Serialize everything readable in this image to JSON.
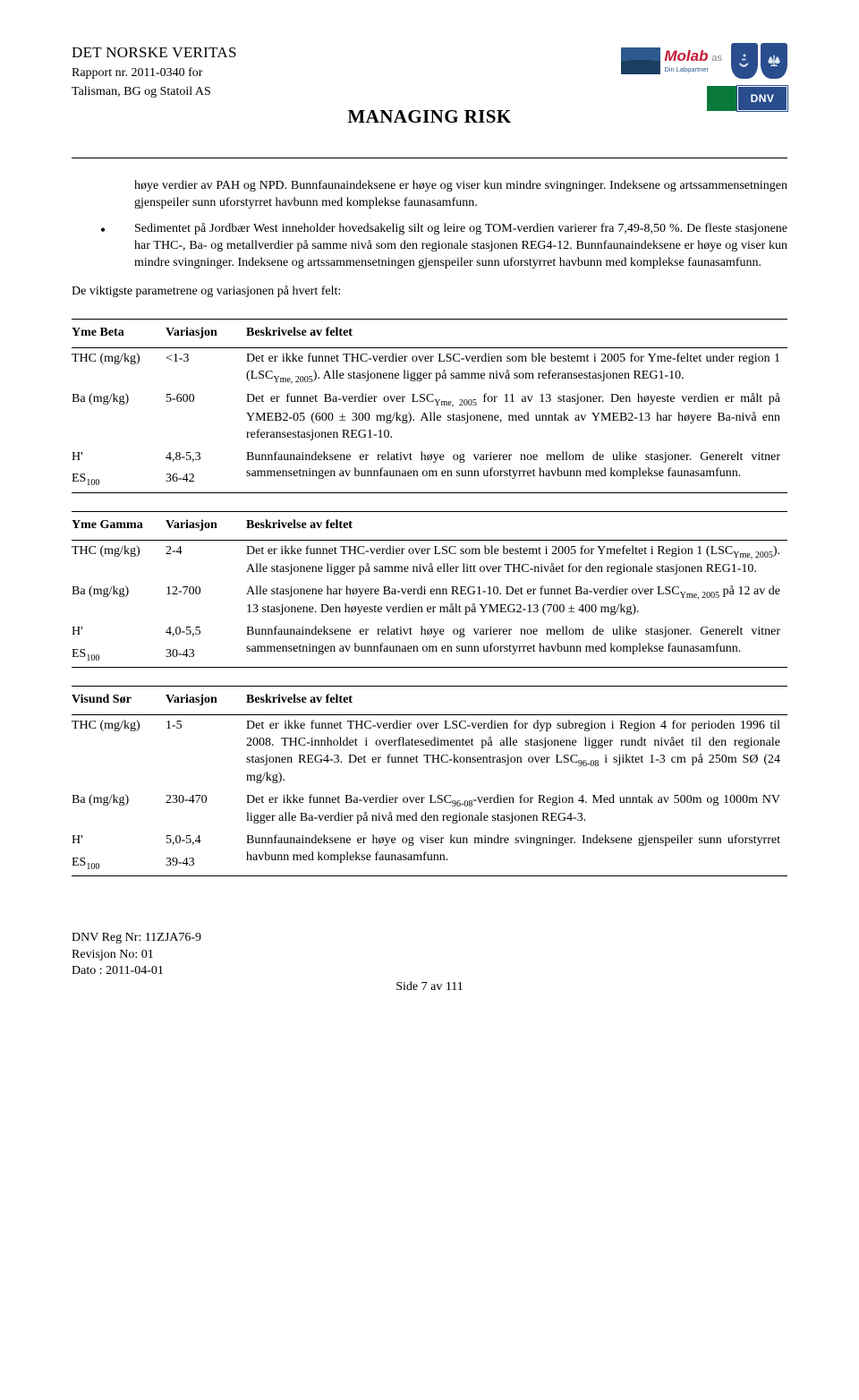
{
  "header": {
    "company": "DET NORSKE VERITAS",
    "report": "Rapport nr. 2011-0340 for",
    "client": "Talisman, BG og Statoil AS",
    "title": "MANAGING RISK",
    "molab_brand": "Molab",
    "molab_suffix": "as",
    "molab_sub": "Din Labpartner",
    "dnv_label": "DNV"
  },
  "body": {
    "para1": "høye verdier av PAH og NPD. Bunnfaunaindeksene er høye og viser kun mindre svingninger. Indeksene og artssammensetningen gjenspeiler sunn uforstyrret havbunn med komplekse faunasamfunn.",
    "bullet": "Sedimentet på Jordbær West inneholder hovedsakelig silt og leire og TOM-verdien varierer fra 7,49-8,50 %. De fleste stasjonene har THC-, Ba- og metallverdier på samme nivå som den regionale stasjonen REG4-12. Bunnfaunaindeksene er høye og viser kun mindre svingninger. Indeksene og artssammensetningen gjenspeiler sunn uforstyrret havbunn med komplekse faunasamfunn.",
    "outro": "De viktigste parametrene og variasjonen på hvert felt:"
  },
  "tables": [
    {
      "head_param": "Yme Beta",
      "head_var": "Variasjon",
      "head_desc": "Beskrivelse av feltet",
      "rows": [
        {
          "param": "THC (mg/kg)",
          "var": "<1-3",
          "desc": "Det er ikke funnet THC-verdier over LSC-verdien som ble bestemt i 2005 for Yme-feltet under region 1 (LSC",
          "desc_sub": "Yme, 2005",
          "desc2": "). Alle stasjonene ligger på samme nivå som referansestasjonen REG1-10."
        },
        {
          "param": "Ba (mg/kg)",
          "var": "5-600",
          "desc": "Det er funnet Ba-verdier over LSC",
          "desc_sub": "Yme, 2005",
          "desc2": " for 11 av 13 stasjoner. Den høyeste verdien er målt på YMEB2-05 (600 ± 300 mg/kg). Alle stasjonene, med unntak av YMEB2-13 har høyere Ba-nivå enn referansestasjonen REG1-10."
        },
        {
          "param": "H'",
          "var": "4,8-5,3",
          "desc": "Bunnfaunaindeksene er relativt høye og varierer noe mellom de ulike stasjoner. Generelt vitner sammensetningen av bunnfaunaen om en sunn uforstyrret havbunn med komplekse faunasamfunn.",
          "paired_param": "ES",
          "paired_sub": "100",
          "paired_var": "36-42"
        }
      ]
    },
    {
      "head_param": "Yme Gamma",
      "head_var": "Variasjon",
      "head_desc": "Beskrivelse av feltet",
      "rows": [
        {
          "param": "THC (mg/kg)",
          "var": "2-4",
          "desc": "Det er ikke funnet THC-verdier over LSC som ble bestemt i 2005 for Ymefeltet i Region 1 (LSC",
          "desc_sub": "Yme, 2005",
          "desc2": "). Alle stasjonene ligger på samme nivå eller litt over THC-nivået for den regionale stasjonen REG1-10."
        },
        {
          "param": "Ba (mg/kg)",
          "var": "12-700",
          "desc": "Alle stasjonene har høyere Ba-verdi enn REG1-10. Det er funnet Ba-verdier over LSC",
          "desc_sub": "Yme, 2005",
          "desc2": " på 12 av de 13 stasjonene. Den høyeste verdien er målt på YMEG2-13 (700 ± 400 mg/kg)."
        },
        {
          "param": "H'",
          "var": "4,0-5,5",
          "desc": "Bunnfaunaindeksene er relativt høye og varierer noe mellom de ulike stasjoner. Generelt vitner sammensetningen av bunnfaunaen om en sunn uforstyrret havbunn med komplekse faunasamfunn.",
          "paired_param": "ES",
          "paired_sub": "100",
          "paired_var": "30-43"
        }
      ]
    },
    {
      "head_param": "Visund Sør",
      "head_var": "Variasjon",
      "head_desc": "Beskrivelse av feltet",
      "rows": [
        {
          "param": "THC (mg/kg)",
          "var": "1-5",
          "desc": "Det er ikke funnet THC-verdier over LSC-verdien for dyp subregion i Region 4 for perioden 1996 til 2008. THC-innholdet i overflatesedimentet på alle stasjonene ligger rundt nivået til den regionale stasjonen REG4-3. Det er funnet THC-konsentrasjon over LSC",
          "desc_sub": "96-08",
          "desc2": " i sjiktet 1-3 cm på 250m SØ (24 mg/kg)."
        },
        {
          "param": "Ba (mg/kg)",
          "var": "230-470",
          "desc": "Det er ikke funnet Ba-verdier over LSC",
          "desc_sub": "96-08",
          "desc2": "-verdien for Region 4. Med unntak av 500m og 1000m NV ligger alle Ba-verdier på nivå med den regionale stasjonen REG4-3."
        },
        {
          "param": "H'",
          "var": "5,0-5,4",
          "desc": "Bunnfaunaindeksene er høye og viser kun mindre svingninger. Indeksene gjenspeiler sunn uforstyrret havbunn med komplekse faunasamfunn.",
          "paired_param": "ES",
          "paired_sub": "100",
          "paired_var": "39-43"
        }
      ]
    }
  ],
  "footer": {
    "reg": "DNV Reg Nr: 11ZJA76-9",
    "rev": "Revisjon No: 01",
    "date": "Dato : 2011-04-01",
    "page": "Side 7 av 111"
  },
  "colors": {
    "text": "#000000",
    "bg": "#ffffff",
    "molab_red": "#c41e3a",
    "molab_blue": "#2c5a8e",
    "shield_blue": "#2a4d8e",
    "dnv_green": "#0a7a3c"
  }
}
